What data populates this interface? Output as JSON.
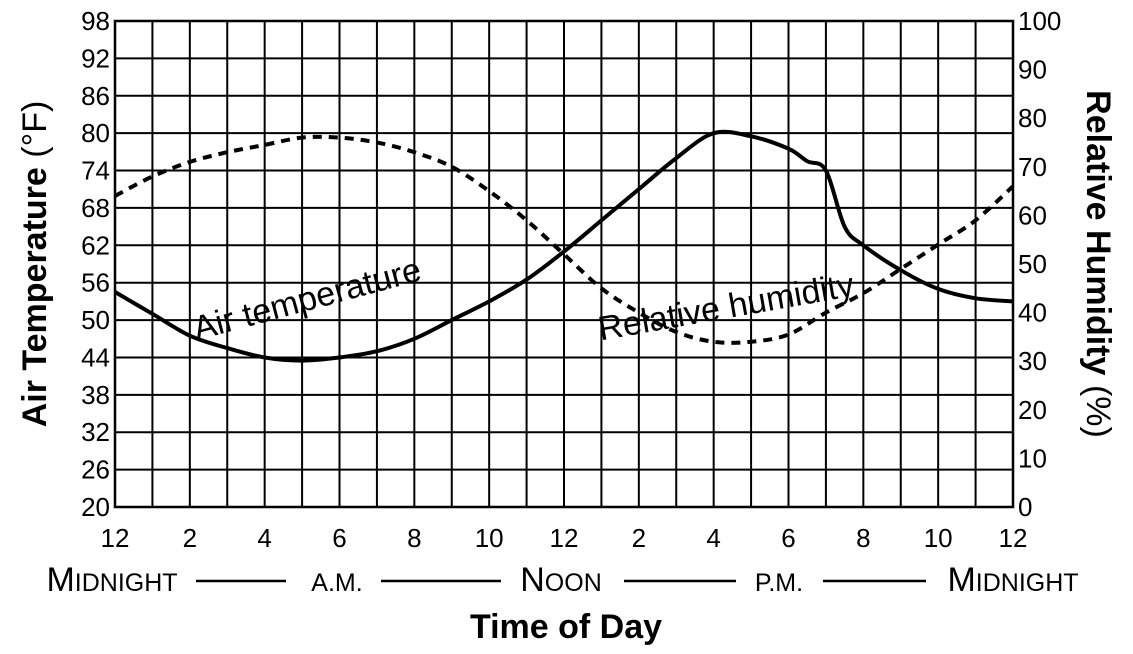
{
  "chart_data": {
    "type": "line",
    "x_ticks": [
      "12",
      "2",
      "4",
      "6",
      "8",
      "10",
      "12",
      "2",
      "4",
      "6",
      "8",
      "10",
      "12"
    ],
    "x_range": [
      0,
      24
    ],
    "y_left": {
      "label": "Air Temperature",
      "unit": "(°F)",
      "ticks": [
        "20",
        "26",
        "32",
        "38",
        "44",
        "50",
        "56",
        "62",
        "68",
        "74",
        "80",
        "86",
        "92",
        "98"
      ],
      "range": [
        20,
        98
      ]
    },
    "y_right": {
      "label": "Relative Humidity",
      "unit": "(%)",
      "ticks": [
        "0",
        "10",
        "20",
        "30",
        "40",
        "50",
        "60",
        "70",
        "80",
        "90",
        "100"
      ],
      "range": [
        0,
        100
      ]
    },
    "xlabel": "Time of Day",
    "period_labels": [
      {
        "big": "M",
        "small": "IDNIGHT"
      },
      {
        "big": "",
        "small": "A.M."
      },
      {
        "big": "N",
        "small": "OON"
      },
      {
        "big": "",
        "small": "P.M."
      },
      {
        "big": "M",
        "small": "IDNIGHT"
      }
    ],
    "grid": true,
    "series": [
      {
        "name": "Air temperature",
        "axis": "left",
        "style": "solid",
        "x": [
          0,
          1,
          2,
          3,
          4,
          5,
          6,
          7,
          8,
          9,
          10,
          11,
          12,
          13,
          14,
          15,
          16,
          17,
          18,
          18.5,
          19,
          19.5,
          20,
          21,
          22,
          23,
          24
        ],
        "y": [
          54.5,
          51,
          47.5,
          45.5,
          44,
          43.5,
          44,
          45,
          47,
          50,
          53,
          56.5,
          61,
          66,
          71,
          76,
          80,
          79.5,
          77.5,
          75.5,
          74,
          65,
          62,
          58,
          55,
          53.5,
          53
        ]
      },
      {
        "name": "Relative humidity",
        "axis": "right",
        "style": "dashed",
        "x": [
          0,
          1,
          2,
          3,
          4,
          5,
          6,
          7,
          8,
          9,
          10,
          11,
          12,
          13,
          14,
          15,
          16,
          17,
          18,
          19,
          20,
          21,
          22,
          23,
          24
        ],
        "y": [
          64,
          68,
          71,
          73,
          74.5,
          76,
          76,
          75,
          73,
          70,
          65,
          59,
          52,
          45,
          40,
          36,
          34,
          34,
          35.5,
          40,
          44,
          49,
          54,
          59,
          66
        ]
      }
    ]
  }
}
